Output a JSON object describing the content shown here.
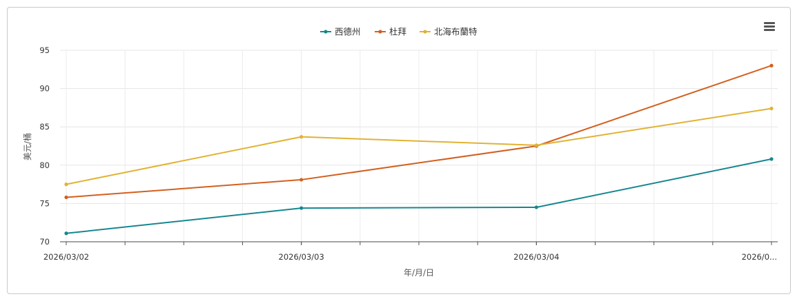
{
  "chart_data": {
    "type": "line",
    "x": [
      "2026/03/02",
      "2026/03/03",
      "2026/03/04",
      "2026/0..."
    ],
    "xlabel": "年/月/日",
    "ylabel": "美元/桶",
    "ylim": [
      70,
      95
    ],
    "yticks": [
      70,
      75,
      80,
      85,
      90,
      95
    ],
    "grid": true,
    "legend_position": "top-center",
    "series": [
      {
        "name": "西德州",
        "color": "#16868f",
        "values": [
          71.1,
          74.4,
          74.5,
          80.8
        ]
      },
      {
        "name": "杜拜",
        "color": "#d35f1e",
        "values": [
          75.8,
          78.1,
          82.5,
          93.0
        ]
      },
      {
        "name": "北海布蘭特",
        "color": "#e1b232",
        "values": [
          77.5,
          83.7,
          82.6,
          87.4
        ]
      }
    ]
  },
  "toolbar": {
    "menu_icon": "hamburger-menu-icon"
  }
}
